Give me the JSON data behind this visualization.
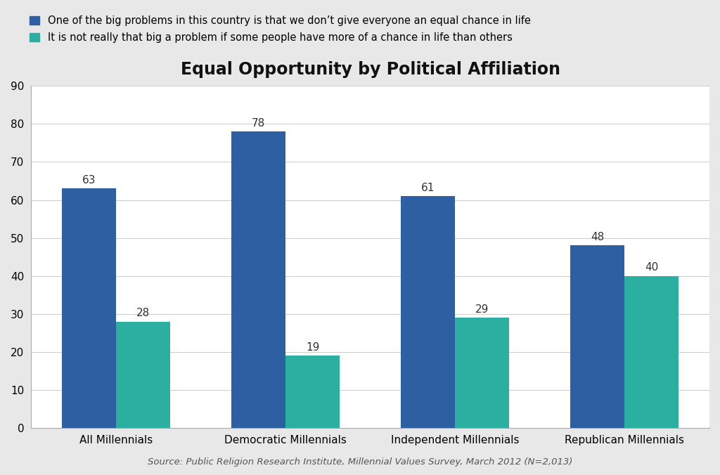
{
  "title": "Equal Opportunity by Political Affiliation",
  "categories": [
    "All Millennials",
    "Democratic Millennials",
    "Independent Millennials",
    "Republican Millennials"
  ],
  "series1_label": "One of the big problems in this country is that we don’t give everyone an equal chance in life",
  "series2_label": "It is not really that big a problem if some people have more of a chance in life than others",
  "series1_values": [
    63,
    78,
    61,
    48
  ],
  "series2_values": [
    28,
    19,
    29,
    40
  ],
  "series1_color": "#2E5FA3",
  "series2_color": "#2AAFA0",
  "ylim": [
    0,
    90
  ],
  "yticks": [
    0,
    10,
    20,
    30,
    40,
    50,
    60,
    70,
    80,
    90
  ],
  "bar_width": 0.32,
  "source_text": "Source: Public Religion Research Institute, Millennial Values Survey, March 2012 (N=2,013)",
  "title_fontsize": 17,
  "legend_fontsize": 10.5,
  "tick_fontsize": 11,
  "source_fontsize": 9.5,
  "value_fontsize": 11,
  "outer_background": "#E8E8E8",
  "plot_background_color": "#FFFFFF"
}
